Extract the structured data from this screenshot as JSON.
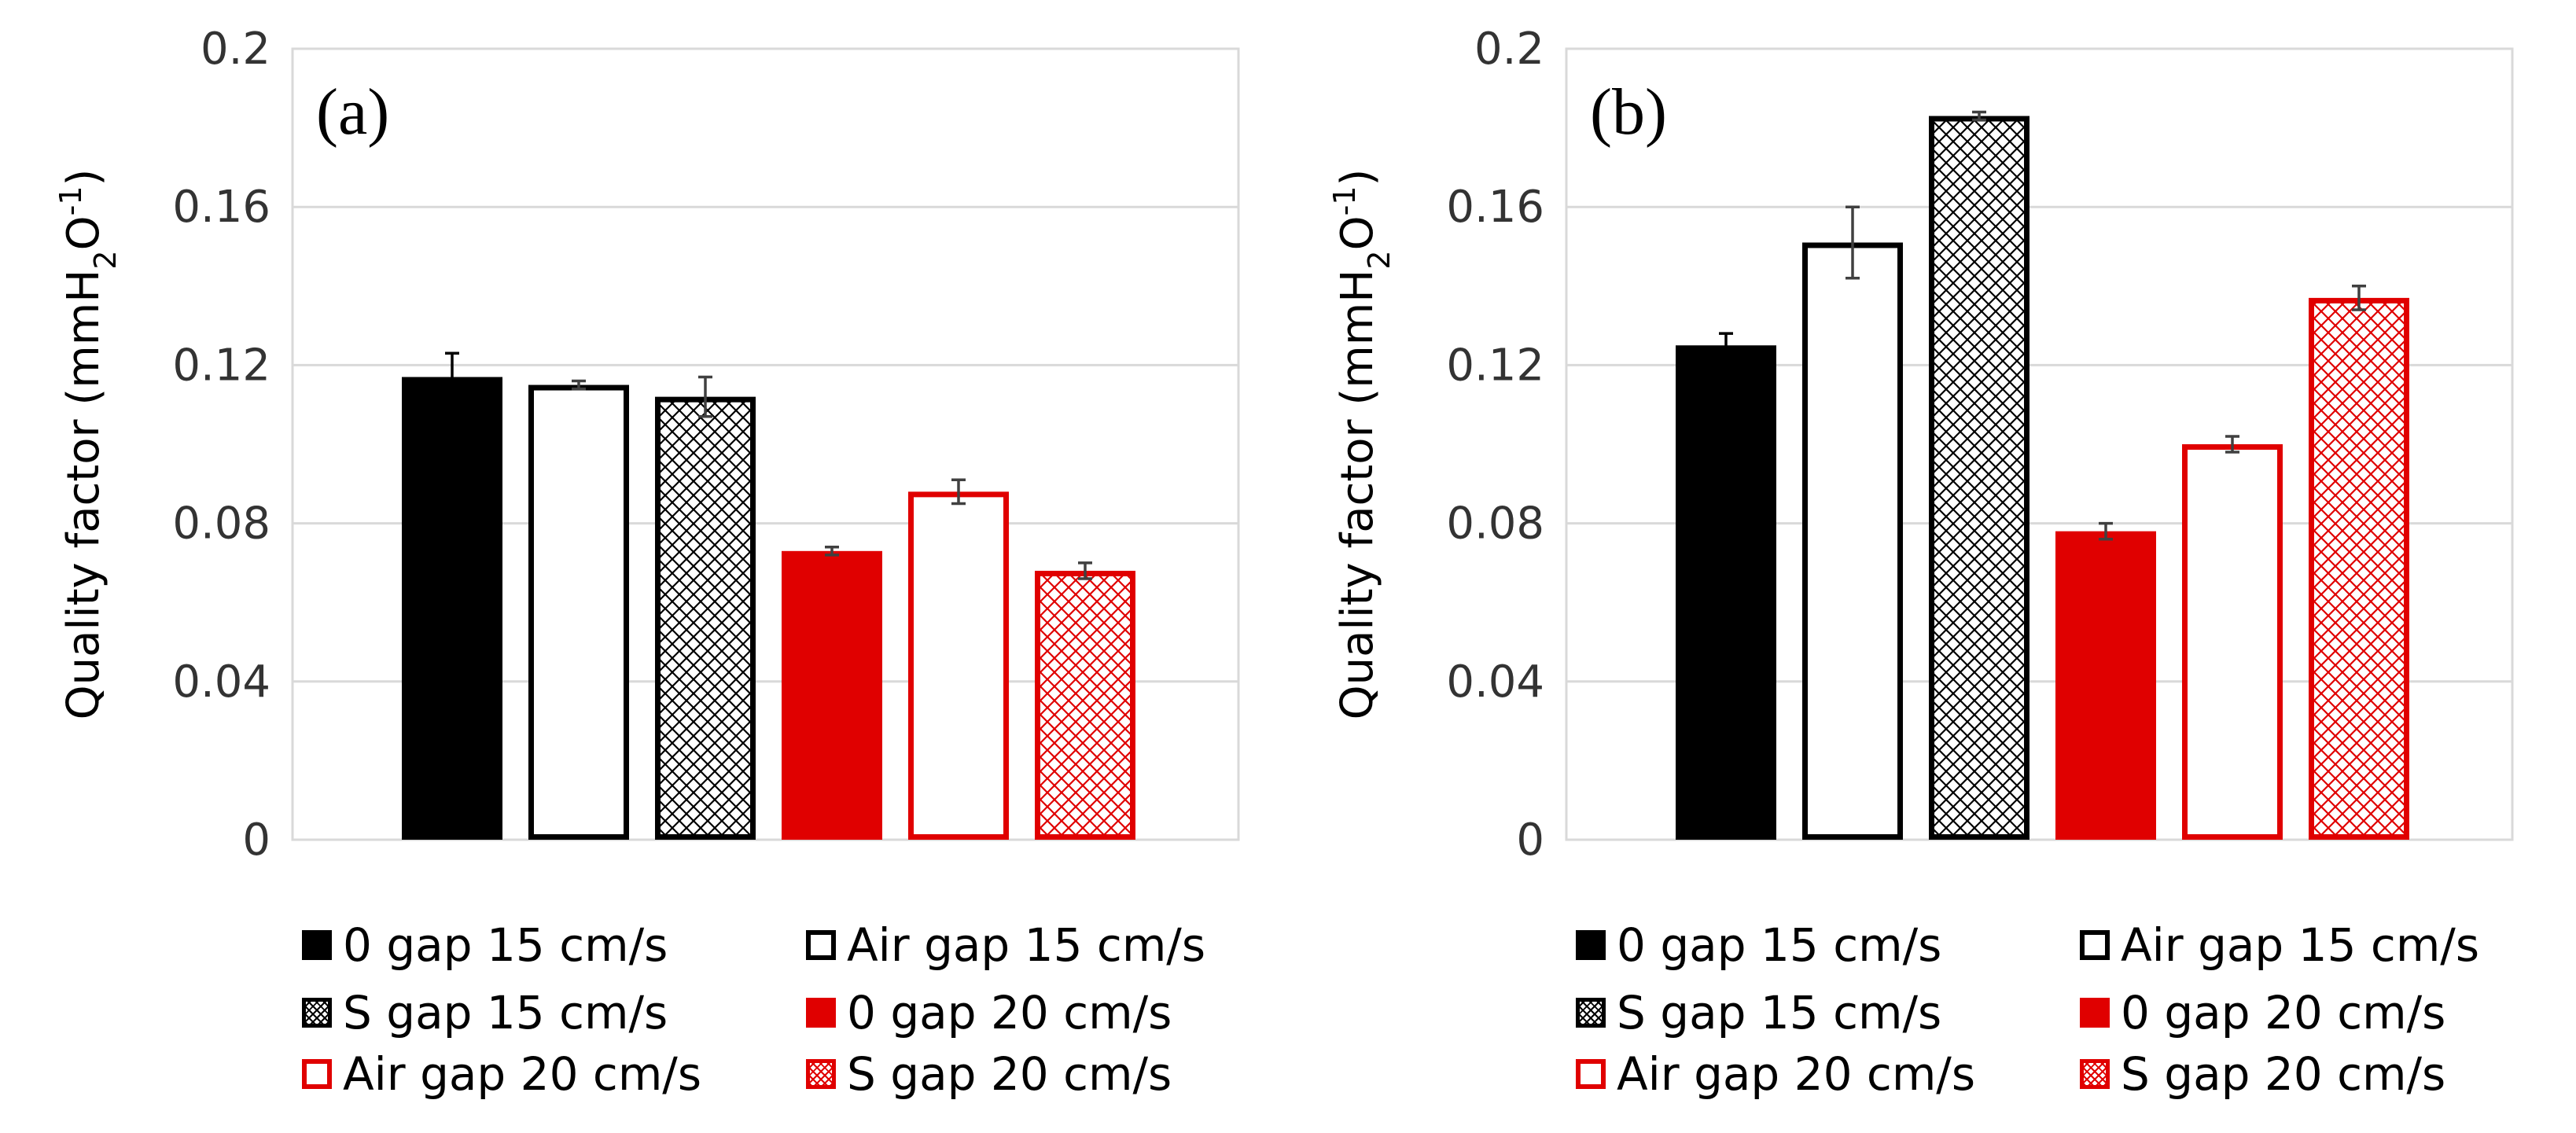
{
  "colors": {
    "black": "#000000",
    "red": "#e00000",
    "white": "#ffffff",
    "grid": "#d9d9d9"
  },
  "chart_data": [
    {
      "type": "bar",
      "panel_label": "(a)",
      "ylabel": "Quality factor (mmH2O-1)",
      "ylabel_parts": {
        "prefix": "Quality factor (mmH",
        "sub": "2",
        "mid": "O",
        "sup": "-1",
        "suffix": ")"
      },
      "ylim": [
        0,
        0.2
      ],
      "yticks": [
        "0",
        "0.04",
        "0.08",
        "0.12",
        "0.16",
        "0.2"
      ],
      "series": [
        {
          "name": "0 gap 15 cm/s",
          "value": 0.117,
          "error": 0.006,
          "style": "solid-black"
        },
        {
          "name": "Air gap 15 cm/s",
          "value": 0.115,
          "error": 0.001,
          "style": "hollow-black"
        },
        {
          "name": "S gap 15 cm/s",
          "value": 0.112,
          "error": 0.005,
          "style": "hatch-black"
        },
        {
          "name": "0 gap 20 cm/s",
          "value": 0.073,
          "error": 0.001,
          "style": "solid-red"
        },
        {
          "name": "Air gap 20 cm/s",
          "value": 0.088,
          "error": 0.003,
          "style": "hollow-red"
        },
        {
          "name": "S gap 20 cm/s",
          "value": 0.068,
          "error": 0.002,
          "style": "hatch-red"
        }
      ]
    },
    {
      "type": "bar",
      "panel_label": "(b)",
      "ylabel": "Quality factor (mmH2O-1)",
      "ylabel_parts": {
        "prefix": "Quality factor (mmH",
        "sub": "2",
        "mid": "O",
        "sup": "-1",
        "suffix": ")"
      },
      "ylim": [
        0,
        0.2
      ],
      "yticks": [
        "0",
        "0.04",
        "0.08",
        "0.12",
        "0.16",
        "0.2"
      ],
      "series": [
        {
          "name": "0 gap 15 cm/s",
          "value": 0.125,
          "error": 0.003,
          "style": "solid-black"
        },
        {
          "name": "Air gap 15 cm/s",
          "value": 0.151,
          "error": 0.009,
          "style": "hollow-black"
        },
        {
          "name": "S gap 15 cm/s",
          "value": 0.183,
          "error": 0.001,
          "style": "hatch-black"
        },
        {
          "name": "0 gap 20 cm/s",
          "value": 0.078,
          "error": 0.002,
          "style": "solid-red"
        },
        {
          "name": "Air gap 20 cm/s",
          "value": 0.1,
          "error": 0.002,
          "style": "hollow-red"
        },
        {
          "name": "S gap 20 cm/s",
          "value": 0.137,
          "error": 0.003,
          "style": "hatch-red"
        }
      ]
    }
  ]
}
